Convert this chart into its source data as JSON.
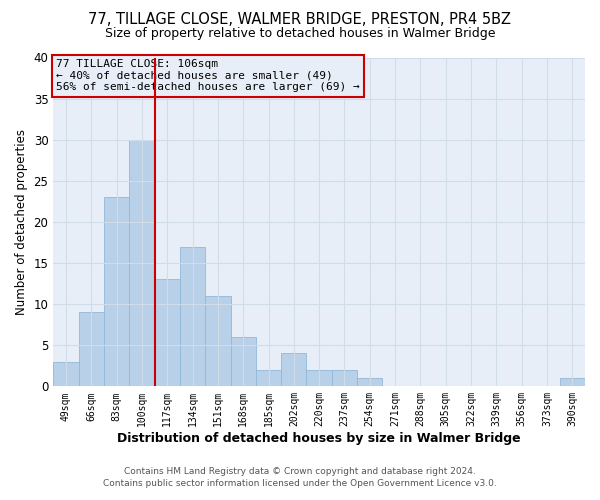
{
  "title": "77, TILLAGE CLOSE, WALMER BRIDGE, PRESTON, PR4 5BZ",
  "subtitle": "Size of property relative to detached houses in Walmer Bridge",
  "xlabel": "Distribution of detached houses by size in Walmer Bridge",
  "ylabel": "Number of detached properties",
  "footer_line1": "Contains HM Land Registry data © Crown copyright and database right 2024.",
  "footer_line2": "Contains public sector information licensed under the Open Government Licence v3.0.",
  "annotation_title": "77 TILLAGE CLOSE: 106sqm",
  "annotation_line1": "← 40% of detached houses are smaller (49)",
  "annotation_line2": "56% of semi-detached houses are larger (69) →",
  "bar_labels": [
    "49sqm",
    "66sqm",
    "83sqm",
    "100sqm",
    "117sqm",
    "134sqm",
    "151sqm",
    "168sqm",
    "185sqm",
    "202sqm",
    "220sqm",
    "237sqm",
    "254sqm",
    "271sqm",
    "288sqm",
    "305sqm",
    "322sqm",
    "339sqm",
    "356sqm",
    "373sqm",
    "390sqm"
  ],
  "bar_values": [
    3,
    9,
    23,
    30,
    13,
    17,
    11,
    6,
    2,
    4,
    2,
    2,
    1,
    0,
    0,
    0,
    0,
    0,
    0,
    0,
    1
  ],
  "bar_color": "#b8d0e8",
  "bar_edgecolor": "#90b8d8",
  "vline_x_idx": 3,
  "vline_color": "#cc0000",
  "annotation_box_color": "#cc0000",
  "ylim": [
    0,
    40
  ],
  "yticks": [
    0,
    5,
    10,
    15,
    20,
    25,
    30,
    35,
    40
  ],
  "grid_color": "#d0dce8",
  "bg_color": "#ffffff",
  "plot_bg_color": "#e8eef8"
}
